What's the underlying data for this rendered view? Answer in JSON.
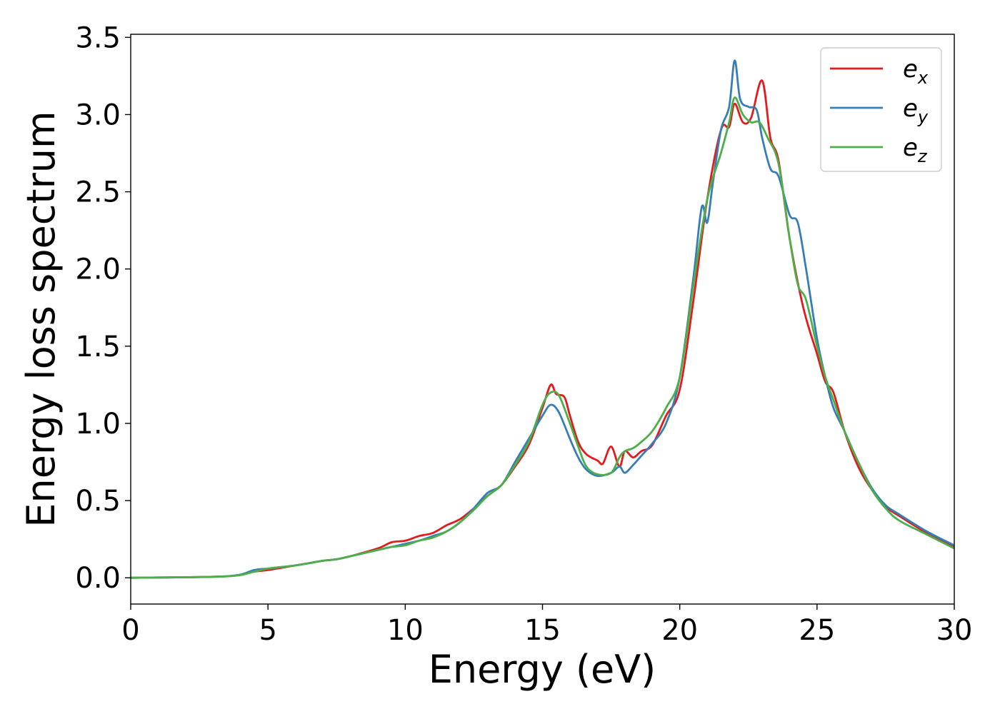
{
  "chart_data": {
    "type": "line",
    "title": "",
    "xlabel": "Energy (eV)",
    "ylabel": "Energy loss spectrum",
    "xlim": [
      0,
      30
    ],
    "ylim": [
      -0.17,
      3.52
    ],
    "xticks": [
      0,
      5,
      10,
      15,
      20,
      25,
      30
    ],
    "xtick_labels": [
      "0",
      "5",
      "10",
      "15",
      "20",
      "25",
      "30"
    ],
    "yticks": [
      0.0,
      0.5,
      1.0,
      1.5,
      2.0,
      2.5,
      3.0,
      3.5
    ],
    "ytick_labels": [
      "0.0",
      "0.5",
      "1.0",
      "1.5",
      "2.0",
      "2.5",
      "3.0",
      "3.5"
    ],
    "grid": false,
    "legend_position": "top-right",
    "series": [
      {
        "name": "e_x",
        "label_base": "e",
        "label_sub": "x",
        "color": "#e41a1c",
        "x": [
          0,
          3.5,
          4.5,
          5,
          6,
          7,
          7.5,
          8,
          9,
          9.5,
          10,
          10.5,
          11,
          11.5,
          12,
          12.5,
          13,
          13.5,
          14,
          14.5,
          15,
          15.3,
          15.5,
          15.8,
          16,
          16.3,
          16.6,
          17,
          17.2,
          17.5,
          17.8,
          18,
          18.3,
          18.6,
          19,
          19.5,
          20,
          20.5,
          21,
          21.5,
          21.8,
          22,
          22.3,
          22.6,
          23,
          23.3,
          23.6,
          24,
          24.5,
          25,
          25.3,
          25.6,
          26,
          26.5,
          27,
          27.5,
          28,
          29,
          30
        ],
        "y": [
          0.0,
          0.01,
          0.04,
          0.05,
          0.08,
          0.11,
          0.12,
          0.14,
          0.19,
          0.23,
          0.24,
          0.27,
          0.29,
          0.34,
          0.38,
          0.45,
          0.53,
          0.6,
          0.72,
          0.86,
          1.1,
          1.25,
          1.19,
          1.17,
          1.05,
          0.88,
          0.8,
          0.76,
          0.74,
          0.85,
          0.72,
          0.82,
          0.78,
          0.82,
          0.86,
          1.05,
          1.22,
          1.8,
          2.45,
          2.9,
          2.92,
          3.07,
          2.95,
          2.98,
          3.22,
          2.85,
          2.7,
          2.2,
          1.75,
          1.45,
          1.27,
          1.2,
          0.95,
          0.72,
          0.57,
          0.46,
          0.4,
          0.29,
          0.2
        ]
      },
      {
        "name": "e_y",
        "label_base": "e",
        "label_sub": "y",
        "color": "#377eb8",
        "x": [
          0,
          3.5,
          4.5,
          5,
          6,
          7,
          7.5,
          8,
          9,
          9.5,
          10,
          10.5,
          11,
          11.5,
          12,
          12.5,
          13,
          13.5,
          14,
          14.5,
          15,
          15.3,
          15.6,
          16,
          16.3,
          16.6,
          17,
          17.5,
          17.8,
          18,
          18.3,
          18.6,
          19,
          19.5,
          20,
          20.5,
          20.8,
          21,
          21.2,
          21.5,
          21.8,
          22,
          22.2,
          22.5,
          22.8,
          23,
          23.3,
          23.6,
          24,
          24.3,
          24.6,
          25,
          25.3,
          25.6,
          26,
          26.5,
          27,
          27.5,
          28,
          29,
          30
        ],
        "y": [
          0.0,
          0.01,
          0.05,
          0.06,
          0.08,
          0.11,
          0.12,
          0.14,
          0.18,
          0.2,
          0.22,
          0.24,
          0.27,
          0.3,
          0.36,
          0.45,
          0.55,
          0.6,
          0.75,
          0.9,
          1.05,
          1.12,
          1.07,
          0.9,
          0.78,
          0.7,
          0.66,
          0.68,
          0.72,
          0.68,
          0.73,
          0.79,
          0.87,
          1.0,
          1.3,
          1.95,
          2.4,
          2.3,
          2.55,
          2.9,
          3.05,
          3.35,
          3.1,
          3.05,
          3.03,
          2.85,
          2.65,
          2.6,
          2.35,
          2.3,
          2.0,
          1.55,
          1.3,
          1.1,
          0.95,
          0.75,
          0.58,
          0.47,
          0.41,
          0.3,
          0.21
        ]
      },
      {
        "name": "e_z",
        "label_base": "e",
        "label_sub": "z",
        "color": "#4daf4a",
        "x": [
          0,
          3.5,
          4.5,
          5,
          6,
          7,
          7.5,
          8,
          9,
          9.5,
          10,
          10.5,
          11,
          11.5,
          12,
          12.5,
          13,
          13.5,
          14,
          14.5,
          15,
          15.3,
          15.6,
          16,
          16.3,
          16.6,
          17,
          17.5,
          17.8,
          18,
          18.3,
          18.6,
          19,
          19.5,
          20,
          20.5,
          21,
          21.5,
          21.8,
          22,
          22.3,
          22.6,
          22.9,
          23.2,
          23.6,
          24,
          24.3,
          24.6,
          25,
          25.3,
          25.6,
          26,
          26.5,
          27,
          27.5,
          28,
          29,
          30
        ],
        "y": [
          0.0,
          0.01,
          0.04,
          0.06,
          0.08,
          0.11,
          0.12,
          0.14,
          0.18,
          0.2,
          0.21,
          0.24,
          0.26,
          0.3,
          0.36,
          0.44,
          0.53,
          0.6,
          0.73,
          0.88,
          1.12,
          1.2,
          1.18,
          1.0,
          0.85,
          0.72,
          0.67,
          0.68,
          0.78,
          0.82,
          0.84,
          0.88,
          0.95,
          1.1,
          1.3,
          1.9,
          2.45,
          2.75,
          2.95,
          3.11,
          3.0,
          2.95,
          2.95,
          2.85,
          2.68,
          2.2,
          1.9,
          1.8,
          1.5,
          1.3,
          1.15,
          0.95,
          0.75,
          0.57,
          0.45,
          0.37,
          0.28,
          0.19
        ]
      }
    ]
  }
}
